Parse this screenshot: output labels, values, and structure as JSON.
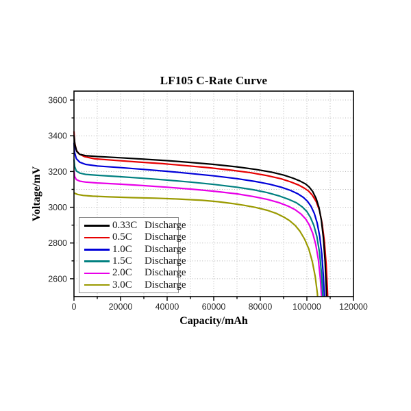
{
  "chart_data": {
    "type": "line",
    "title": "LF105 C-Rate Curve",
    "xlabel": "Capacity/mAh",
    "ylabel": "Voltage/mV",
    "xlim": [
      0,
      120000
    ],
    "ylim": [
      2500,
      3650
    ],
    "grid": "dotted gray gridlines at every minor and major tick",
    "legend_position": "lower-left",
    "x_ticks": [
      {
        "v": 0,
        "label": "0"
      },
      {
        "v": 20000,
        "label": "20000"
      },
      {
        "v": 40000,
        "label": "40000"
      },
      {
        "v": 60000,
        "label": "60000"
      },
      {
        "v": 80000,
        "label": "80000"
      },
      {
        "v": 100000,
        "label": "100000"
      },
      {
        "v": 120000,
        "label": "120000"
      }
    ],
    "x_minor_tick_step": 10000,
    "y_ticks": [
      {
        "v": 2600,
        "label": "2600"
      },
      {
        "v": 2800,
        "label": "2800"
      },
      {
        "v": 3000,
        "label": "3000"
      },
      {
        "v": 3200,
        "label": "3200"
      },
      {
        "v": 3400,
        "label": "3400"
      },
      {
        "v": 3600,
        "label": "3600"
      }
    ],
    "y_minor_tick_step": 100,
    "series": [
      {
        "name": "0.33C Discharge",
        "legend_rate": "0.33C",
        "legend_word": "Discharge",
        "color": "#000000",
        "points": [
          [
            0,
            3402
          ],
          [
            400,
            3350
          ],
          [
            1200,
            3312
          ],
          [
            2500,
            3296
          ],
          [
            5000,
            3289
          ],
          [
            10000,
            3284
          ],
          [
            20000,
            3277
          ],
          [
            30000,
            3269
          ],
          [
            40000,
            3261
          ],
          [
            50000,
            3251
          ],
          [
            60000,
            3240
          ],
          [
            70000,
            3226
          ],
          [
            78000,
            3212
          ],
          [
            85000,
            3196
          ],
          [
            90000,
            3180
          ],
          [
            94000,
            3163
          ],
          [
            97000,
            3147
          ],
          [
            99500,
            3130
          ],
          [
            101000,
            3113
          ],
          [
            102500,
            3088
          ],
          [
            104000,
            3048
          ],
          [
            105200,
            2998
          ],
          [
            106200,
            2928
          ],
          [
            107100,
            2828
          ],
          [
            107800,
            2700
          ],
          [
            108300,
            2556
          ],
          [
            108450,
            2500
          ]
        ]
      },
      {
        "name": "0.5C Discharge",
        "legend_rate": "0.5C",
        "legend_word": "Discharge",
        "color": "#e60000",
        "points": [
          [
            0,
            3425
          ],
          [
            300,
            3362
          ],
          [
            1000,
            3320
          ],
          [
            2200,
            3298
          ],
          [
            4500,
            3283
          ],
          [
            9000,
            3271
          ],
          [
            18000,
            3262
          ],
          [
            28000,
            3253
          ],
          [
            38000,
            3244
          ],
          [
            48000,
            3233
          ],
          [
            58000,
            3221
          ],
          [
            68000,
            3207
          ],
          [
            76000,
            3193
          ],
          [
            83000,
            3177
          ],
          [
            89000,
            3159
          ],
          [
            93000,
            3142
          ],
          [
            96500,
            3124
          ],
          [
            99000,
            3106
          ],
          [
            100800,
            3090
          ],
          [
            102300,
            3068
          ],
          [
            104000,
            3032
          ],
          [
            105400,
            2982
          ],
          [
            106500,
            2912
          ],
          [
            107500,
            2812
          ],
          [
            108300,
            2678
          ],
          [
            108800,
            2545
          ],
          [
            108950,
            2500
          ]
        ]
      },
      {
        "name": "1.0C Discharge",
        "legend_rate": "1.0C",
        "legend_word": "Discharge",
        "color": "#0000d9",
        "points": [
          [
            0,
            3360
          ],
          [
            300,
            3305
          ],
          [
            1000,
            3272
          ],
          [
            2500,
            3252
          ],
          [
            5000,
            3240
          ],
          [
            10000,
            3231
          ],
          [
            20000,
            3222
          ],
          [
            30000,
            3212
          ],
          [
            40000,
            3201
          ],
          [
            50000,
            3189
          ],
          [
            60000,
            3176
          ],
          [
            70000,
            3160
          ],
          [
            78000,
            3144
          ],
          [
            84000,
            3129
          ],
          [
            89000,
            3112
          ],
          [
            93000,
            3094
          ],
          [
            96000,
            3076
          ],
          [
            98500,
            3055
          ],
          [
            100300,
            3033
          ],
          [
            101800,
            3005
          ],
          [
            103200,
            2965
          ],
          [
            104400,
            2912
          ],
          [
            105500,
            2838
          ],
          [
            106400,
            2738
          ],
          [
            107100,
            2612
          ],
          [
            107500,
            2510
          ],
          [
            107550,
            2500
          ]
        ]
      },
      {
        "name": "1.5C Discharge",
        "legend_rate": "1.5C",
        "legend_word": "Discharge",
        "color": "#008080",
        "points": [
          [
            0,
            3268
          ],
          [
            300,
            3228
          ],
          [
            1000,
            3203
          ],
          [
            2500,
            3191
          ],
          [
            5000,
            3184
          ],
          [
            10000,
            3179
          ],
          [
            20000,
            3171
          ],
          [
            30000,
            3162
          ],
          [
            40000,
            3152
          ],
          [
            50000,
            3141
          ],
          [
            60000,
            3128
          ],
          [
            70000,
            3112
          ],
          [
            77000,
            3098
          ],
          [
            83000,
            3082
          ],
          [
            88000,
            3064
          ],
          [
            92000,
            3045
          ],
          [
            95500,
            3025
          ],
          [
            98000,
            3002
          ],
          [
            100000,
            2976
          ],
          [
            101500,
            2944
          ],
          [
            103000,
            2898
          ],
          [
            104300,
            2836
          ],
          [
            105400,
            2748
          ],
          [
            106300,
            2628
          ],
          [
            106800,
            2512
          ],
          [
            106850,
            2500
          ]
        ]
      },
      {
        "name": "2.0C Discharge",
        "legend_rate": "2.0C",
        "legend_word": "Discharge",
        "color": "#e800e8",
        "points": [
          [
            0,
            3205
          ],
          [
            300,
            3172
          ],
          [
            1000,
            3155
          ],
          [
            2500,
            3146
          ],
          [
            5000,
            3141
          ],
          [
            10000,
            3136
          ],
          [
            20000,
            3129
          ],
          [
            30000,
            3121
          ],
          [
            40000,
            3112
          ],
          [
            50000,
            3102
          ],
          [
            60000,
            3090
          ],
          [
            70000,
            3075
          ],
          [
            77000,
            3060
          ],
          [
            83000,
            3044
          ],
          [
            88000,
            3026
          ],
          [
            92000,
            3006
          ],
          [
            95000,
            2986
          ],
          [
            97500,
            2962
          ],
          [
            99500,
            2934
          ],
          [
            101000,
            2902
          ],
          [
            102500,
            2855
          ],
          [
            103800,
            2792
          ],
          [
            104900,
            2708
          ],
          [
            105800,
            2598
          ],
          [
            106250,
            2505
          ],
          [
            106300,
            2500
          ]
        ]
      },
      {
        "name": "3.0C Discharge",
        "legend_rate": "3.0C",
        "legend_word": "Discharge",
        "color": "#9a9a00",
        "points": [
          [
            0,
            3080
          ],
          [
            1500,
            3072
          ],
          [
            4000,
            3066
          ],
          [
            8000,
            3062
          ],
          [
            15000,
            3058
          ],
          [
            25000,
            3054
          ],
          [
            35000,
            3051
          ],
          [
            45000,
            3046
          ],
          [
            55000,
            3039
          ],
          [
            62000,
            3031
          ],
          [
            68000,
            3021
          ],
          [
            73000,
            3011
          ],
          [
            78000,
            2999
          ],
          [
            83000,
            2983
          ],
          [
            87000,
            2965
          ],
          [
            90000,
            2946
          ],
          [
            92500,
            2926
          ],
          [
            95000,
            2898
          ],
          [
            97000,
            2866
          ],
          [
            99000,
            2822
          ],
          [
            100800,
            2768
          ],
          [
            102300,
            2698
          ],
          [
            103600,
            2612
          ],
          [
            104500,
            2518
          ],
          [
            104600,
            2500
          ]
        ]
      }
    ],
    "style_colors": {
      "frame": "#000000",
      "gridline": "#b3b3b3",
      "tick": "#000000",
      "tick_label": "#2b2b2b",
      "legend_border": "#8c8c8c"
    }
  }
}
